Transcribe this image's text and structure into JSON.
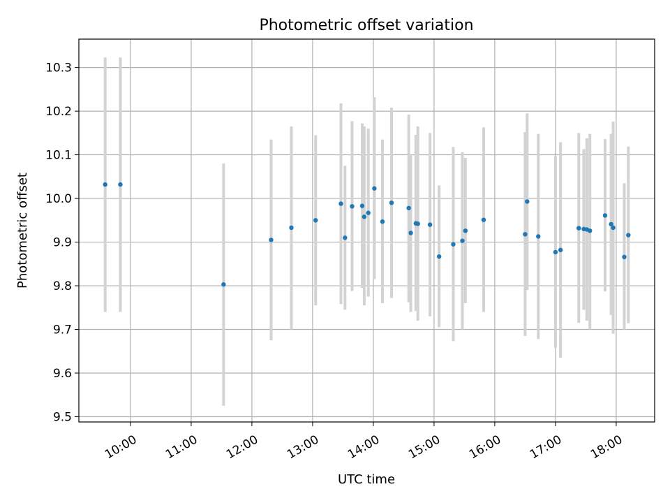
{
  "chart_data": {
    "type": "scatter",
    "title": "Photometric offset variation",
    "xlabel": "UTC time",
    "ylabel": "Photometric offset",
    "x_ticks": [
      "10:00",
      "11:00",
      "12:00",
      "13:00",
      "14:00",
      "15:00",
      "16:00",
      "17:00",
      "18:00"
    ],
    "y_ticks": [
      "9.5",
      "9.6",
      "9.7",
      "9.8",
      "9.9",
      "10.0",
      "10.1",
      "10.2",
      "10.3"
    ],
    "xlim": [
      "09:09",
      "18:38"
    ],
    "ylim": [
      9.488,
      10.365
    ],
    "grid": true,
    "point_color": "#1f77b4",
    "errorbar_color": "#d3d3d3",
    "series": [
      {
        "points": [
          {
            "x": "09:35",
            "y": 10.032,
            "ylow": 9.74,
            "yhigh": 10.323
          },
          {
            "x": "09:50",
            "y": 10.032,
            "ylow": 9.74,
            "yhigh": 10.323
          },
          {
            "x": "11:32",
            "y": 9.803,
            "ylow": 9.525,
            "yhigh": 10.08
          },
          {
            "x": "12:19",
            "y": 9.905,
            "ylow": 9.675,
            "yhigh": 10.135
          },
          {
            "x": "12:39",
            "y": 9.933,
            "ylow": 9.7,
            "yhigh": 10.165
          },
          {
            "x": "13:03",
            "y": 9.95,
            "ylow": 9.755,
            "yhigh": 10.145
          },
          {
            "x": "13:28",
            "y": 9.988,
            "ylow": 9.758,
            "yhigh": 10.218
          },
          {
            "x": "13:32",
            "y": 9.91,
            "ylow": 9.745,
            "yhigh": 10.075
          },
          {
            "x": "13:39",
            "y": 9.982,
            "ylow": 9.788,
            "yhigh": 10.177
          },
          {
            "x": "13:49",
            "y": 9.983,
            "ylow": 9.795,
            "yhigh": 10.172
          },
          {
            "x": "13:51",
            "y": 9.958,
            "ylow": 9.755,
            "yhigh": 10.165
          },
          {
            "x": "13:55",
            "y": 9.967,
            "ylow": 9.775,
            "yhigh": 10.16
          },
          {
            "x": "14:01",
            "y": 10.023,
            "ylow": 9.815,
            "yhigh": 10.232
          },
          {
            "x": "14:09",
            "y": 9.947,
            "ylow": 9.76,
            "yhigh": 10.135
          },
          {
            "x": "14:18",
            "y": 9.99,
            "ylow": 9.772,
            "yhigh": 10.208
          },
          {
            "x": "14:35",
            "y": 9.978,
            "ylow": 9.762,
            "yhigh": 10.192
          },
          {
            "x": "14:37",
            "y": 9.921,
            "ylow": 9.74,
            "yhigh": 10.1
          },
          {
            "x": "14:42",
            "y": 9.943,
            "ylow": 9.742,
            "yhigh": 10.146
          },
          {
            "x": "14:44",
            "y": 9.942,
            "ylow": 9.72,
            "yhigh": 10.165
          },
          {
            "x": "14:56",
            "y": 9.94,
            "ylow": 9.73,
            "yhigh": 10.15
          },
          {
            "x": "15:05",
            "y": 9.867,
            "ylow": 9.705,
            "yhigh": 10.03
          },
          {
            "x": "15:19",
            "y": 9.895,
            "ylow": 9.673,
            "yhigh": 10.118
          },
          {
            "x": "15:28",
            "y": 9.903,
            "ylow": 9.7,
            "yhigh": 10.106
          },
          {
            "x": "15:31",
            "y": 9.926,
            "ylow": 9.76,
            "yhigh": 10.093
          },
          {
            "x": "15:49",
            "y": 9.951,
            "ylow": 9.74,
            "yhigh": 10.163
          },
          {
            "x": "16:30",
            "y": 9.918,
            "ylow": 9.685,
            "yhigh": 10.152
          },
          {
            "x": "16:32",
            "y": 9.993,
            "ylow": 9.79,
            "yhigh": 10.195
          },
          {
            "x": "16:43",
            "y": 9.913,
            "ylow": 9.678,
            "yhigh": 10.148
          },
          {
            "x": "17:00",
            "y": 9.877,
            "ylow": 9.658,
            "yhigh": 10.097
          },
          {
            "x": "17:05",
            "y": 9.882,
            "ylow": 9.635,
            "yhigh": 10.129
          },
          {
            "x": "17:23",
            "y": 9.932,
            "ylow": 9.715,
            "yhigh": 10.15
          },
          {
            "x": "17:28",
            "y": 9.93,
            "ylow": 9.745,
            "yhigh": 10.113
          },
          {
            "x": "17:31",
            "y": 9.929,
            "ylow": 9.72,
            "yhigh": 10.138
          },
          {
            "x": "17:34",
            "y": 9.926,
            "ylow": 9.7,
            "yhigh": 10.148
          },
          {
            "x": "17:49",
            "y": 9.961,
            "ylow": 9.787,
            "yhigh": 10.136
          },
          {
            "x": "17:55",
            "y": 9.941,
            "ylow": 9.733,
            "yhigh": 10.148
          },
          {
            "x": "17:57",
            "y": 9.933,
            "ylow": 9.69,
            "yhigh": 10.176
          },
          {
            "x": "18:08",
            "y": 9.866,
            "ylow": 9.7,
            "yhigh": 10.035
          },
          {
            "x": "18:12",
            "y": 9.916,
            "ylow": 9.714,
            "yhigh": 10.119
          }
        ]
      }
    ]
  }
}
